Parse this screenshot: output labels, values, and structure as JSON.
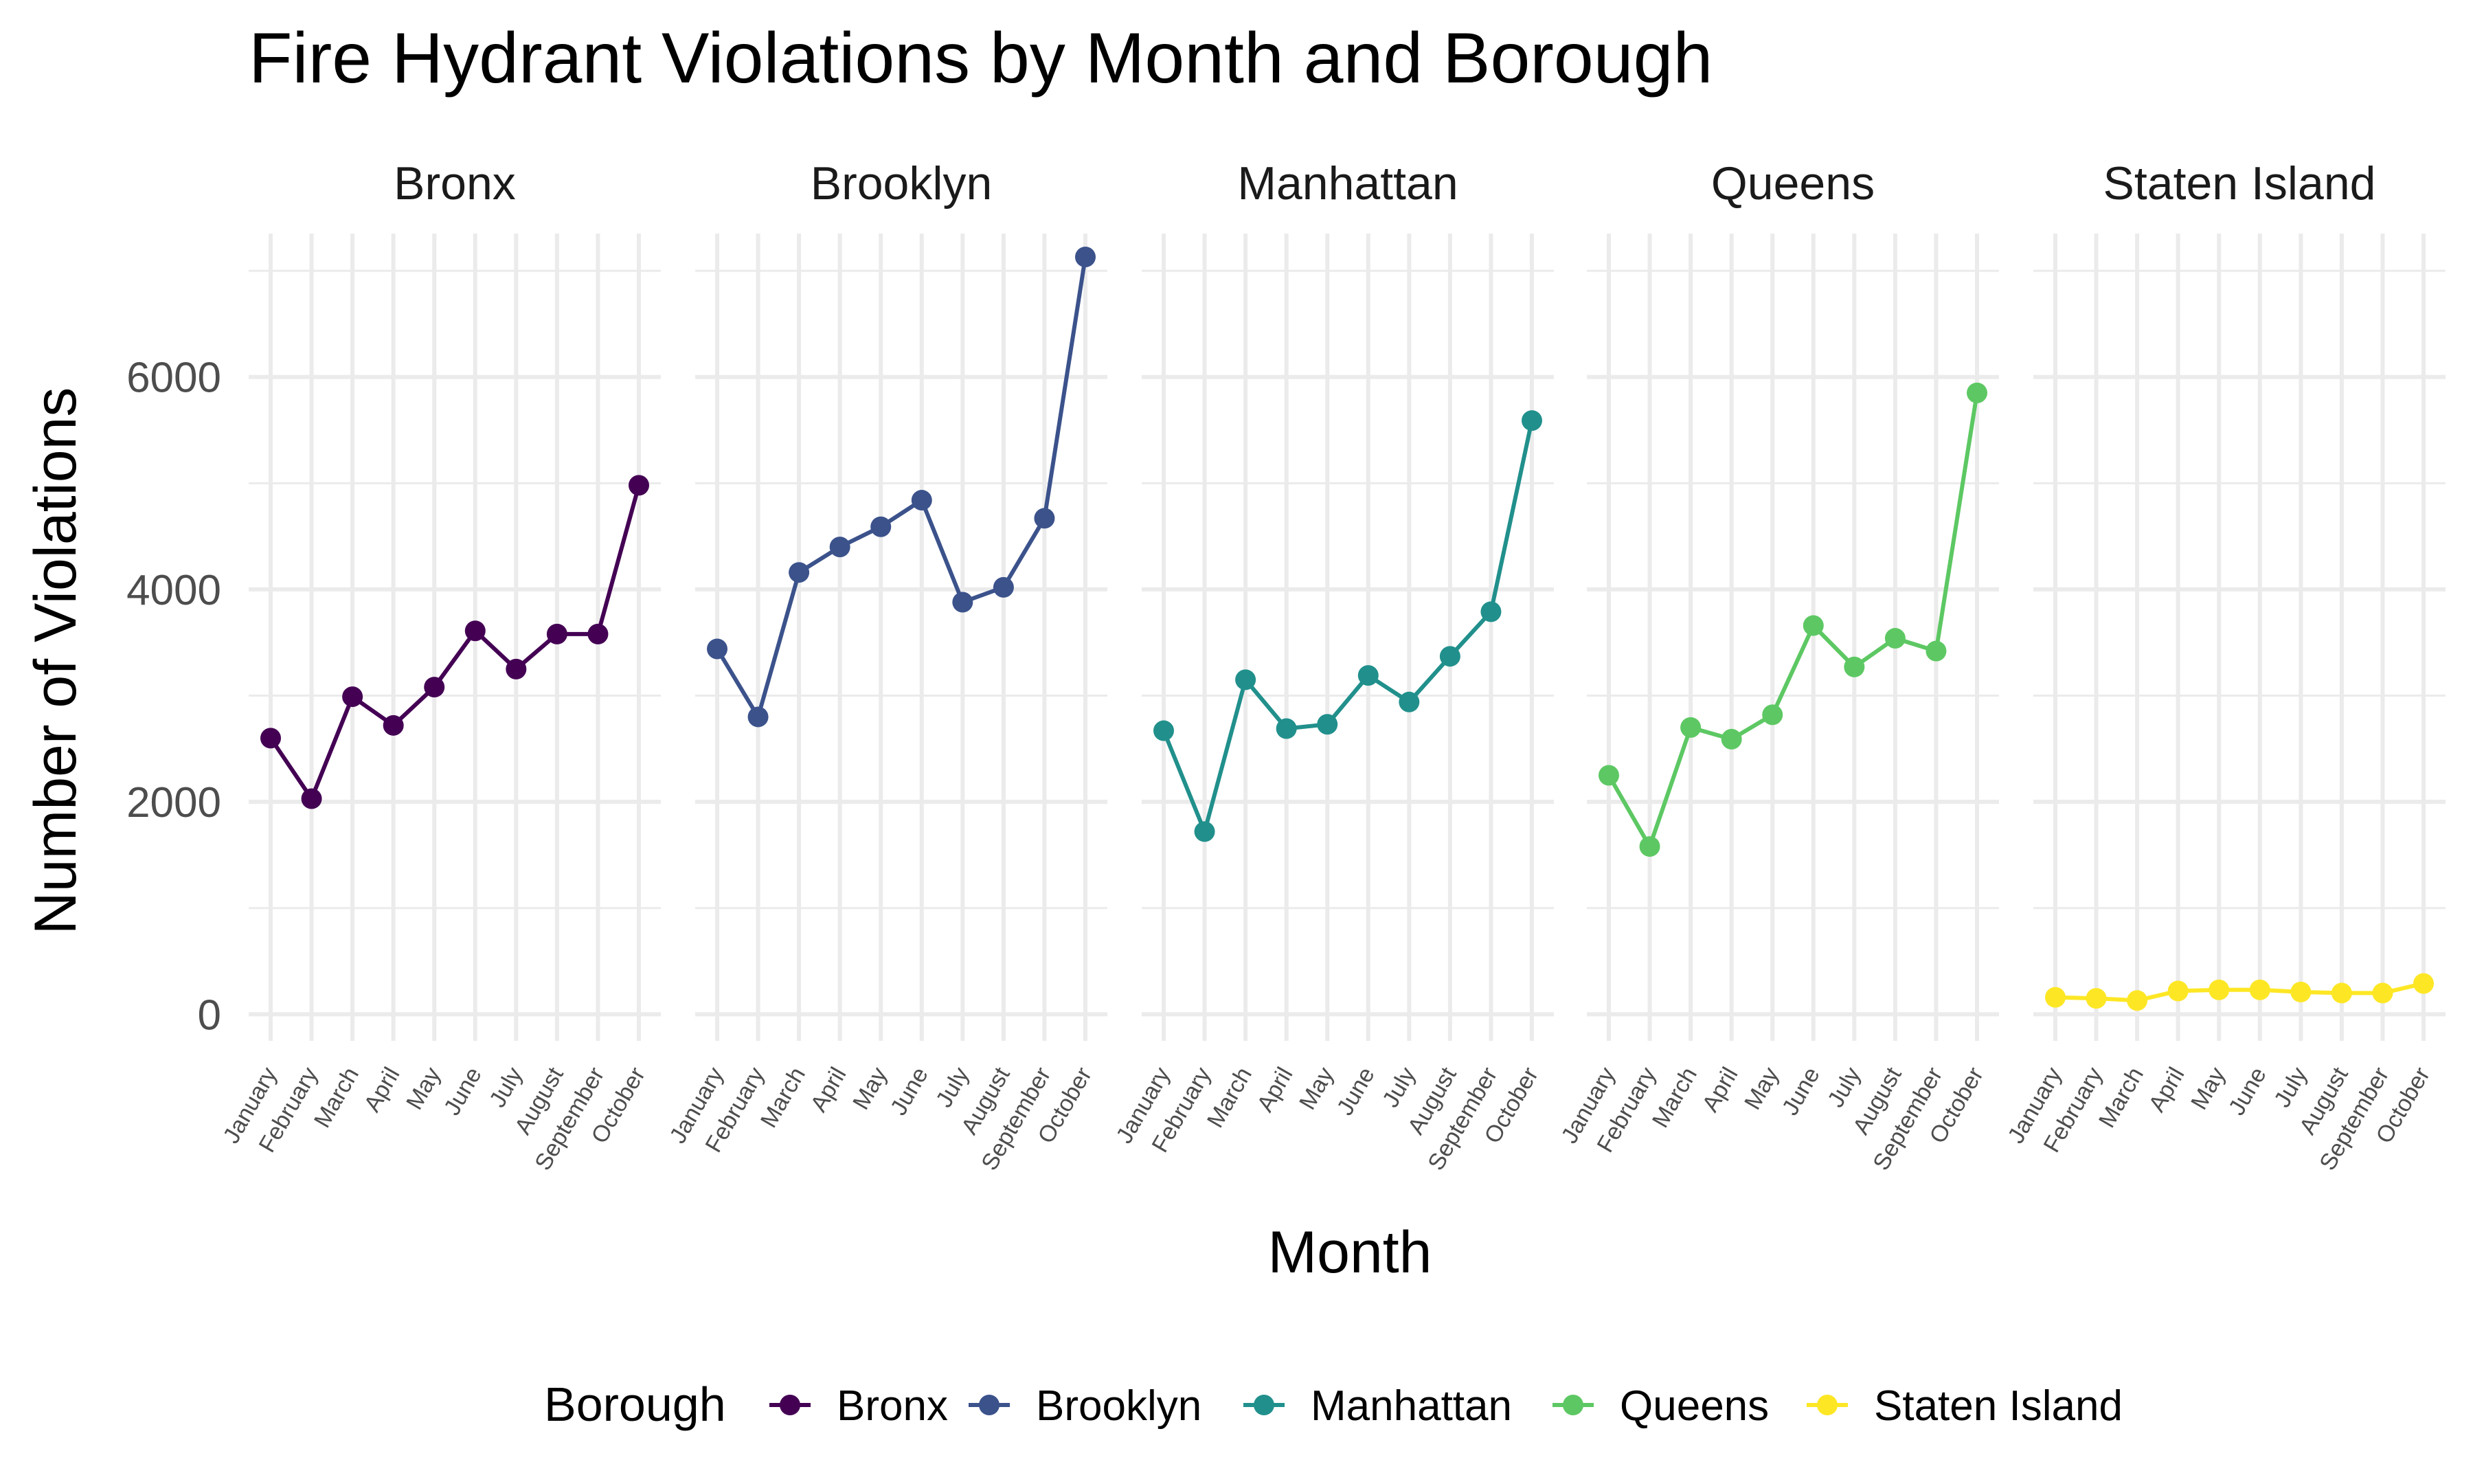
{
  "chart_data": {
    "type": "line",
    "title": "Fire Hydrant Violations by Month and Borough",
    "xlabel": "Month",
    "ylabel": "Number of Violations",
    "categories": [
      "January",
      "February",
      "March",
      "April",
      "May",
      "June",
      "July",
      "August",
      "September",
      "October"
    ],
    "ylim": [
      -250,
      7350
    ],
    "yticks": [
      "0",
      "2000",
      "4000",
      "6000"
    ],
    "ytick_values": [
      0,
      2000,
      4000,
      6000
    ],
    "grid": true,
    "legend": {
      "title": "Borough",
      "position": "bottom"
    },
    "series": [
      {
        "name": "Bronx",
        "color": "#440154",
        "values": [
          2600,
          2030,
          2990,
          2720,
          3080,
          3610,
          3250,
          3580,
          3580,
          4980
        ]
      },
      {
        "name": "Brooklyn",
        "color": "#3B528B",
        "values": [
          3440,
          2800,
          4160,
          4400,
          4590,
          4840,
          3880,
          4020,
          4670,
          7130
        ]
      },
      {
        "name": "Manhattan",
        "color": "#21908C",
        "values": [
          2670,
          1720,
          3150,
          2690,
          2730,
          3190,
          2940,
          3370,
          3790,
          5590
        ]
      },
      {
        "name": "Queens",
        "color": "#5DC863",
        "values": [
          2250,
          1580,
          2700,
          2590,
          2820,
          3660,
          3270,
          3540,
          3420,
          5850
        ]
      },
      {
        "name": "Staten Island",
        "color": "#FDE725",
        "values": [
          160,
          150,
          130,
          220,
          230,
          230,
          210,
          200,
          200,
          290
        ]
      }
    ]
  }
}
